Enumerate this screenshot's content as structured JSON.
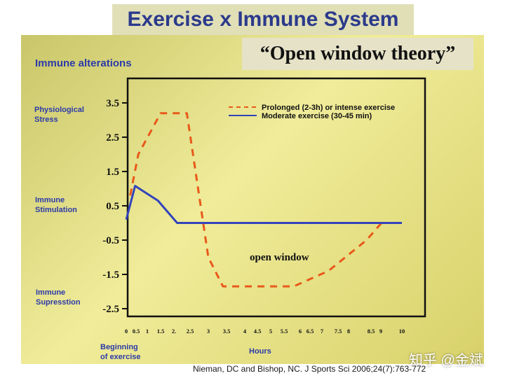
{
  "title": "Exercise x Immune System",
  "subtitle": "“Open window theory”",
  "labels": {
    "immune_alterations": "Immune alterations",
    "physiological_stress": "Physiological\nStress",
    "immune_stimulation": "Immune\nStimulation",
    "immune_suppression": "Immune\nSupresstion",
    "beginning": "Beginning\nof exercise",
    "hours": "Hours"
  },
  "citation": "Nieman, DC and Bishop, NC. J Sports Sci 2006;24(7):763-772",
  "watermark": "知乎 @金斌",
  "chart_data": {
    "type": "line",
    "title": "",
    "xlabel": "Hours",
    "ylabel": "Immune alterations",
    "y_ticks": [
      "3.5",
      "2.5",
      "1.5",
      "0.5",
      "-0.5",
      "-1.5",
      "-2.5"
    ],
    "x_ticks": [
      "0",
      "0.5",
      "1",
      "1.5",
      "2.",
      "2.5",
      "3",
      "3.5",
      "4",
      "4.5",
      "5",
      "5.5",
      "6",
      "6.5",
      "7",
      "7.5",
      "8",
      "8.5",
      "9",
      "10"
    ],
    "annotation": "open window",
    "legend_position": "top-right",
    "series": [
      {
        "name": "Prolonged (2-3h) or intense exercise",
        "style": "dashed",
        "color": "#e8591a",
        "points": [
          [
            0.2,
            0.8
          ],
          [
            0.6,
            2.0
          ],
          [
            1.5,
            3.2
          ],
          [
            2.4,
            3.2
          ],
          [
            3.0,
            -1.0
          ],
          [
            3.4,
            -1.85
          ],
          [
            5.8,
            -1.85
          ],
          [
            7.2,
            -1.4
          ],
          [
            8.4,
            -0.5
          ],
          [
            9.1,
            0.05
          ]
        ]
      },
      {
        "name": "Moderate exercise (30-45 min)",
        "style": "solid",
        "color": "#3344bb",
        "points": [
          [
            0.0,
            0.1
          ],
          [
            0.45,
            1.08
          ],
          [
            1.4,
            0.65
          ],
          [
            2.1,
            0.0
          ],
          [
            10.0,
            0.0
          ]
        ]
      }
    ]
  }
}
